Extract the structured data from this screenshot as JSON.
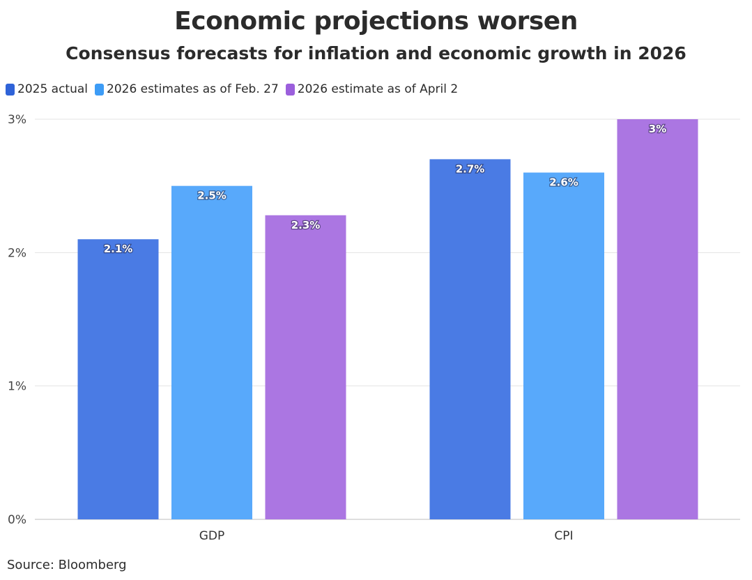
{
  "chart_data": {
    "type": "bar",
    "title": "Economic projections worsen",
    "subtitle": "Consensus forecasts for inflation and economic growth in 2026",
    "categories": [
      "GDP",
      "CPI"
    ],
    "series": [
      {
        "name": "2025 actual",
        "color": "#4a7be4",
        "values": [
          2.1,
          2.7
        ],
        "labels": [
          "2.1%",
          "2.7%"
        ]
      },
      {
        "name": "2026 estimates as of Feb. 27",
        "color": "#58a9fb",
        "values": [
          2.5,
          2.6
        ],
        "labels": [
          "2.5%",
          "2.6%"
        ]
      },
      {
        "name": "2026 estimate as of April 2",
        "color": "#ab76e2",
        "values": [
          2.28,
          3.0
        ],
        "labels": [
          "2.3%",
          "3%"
        ]
      }
    ],
    "ylim": [
      0,
      3
    ],
    "yticks": [
      0,
      1,
      2,
      3
    ],
    "ytick_labels": [
      "0%",
      "1%",
      "2%",
      "3%"
    ],
    "grid": true,
    "legend_position": "top-left",
    "xlabel": "",
    "ylabel": ""
  },
  "source": "Source: Bloomberg"
}
